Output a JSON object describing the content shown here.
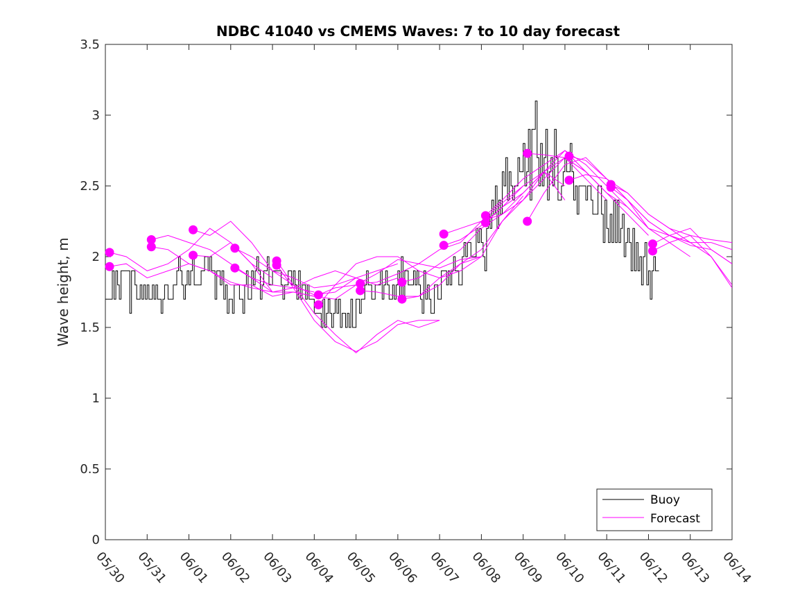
{
  "chart_data": {
    "type": "line",
    "title": "NDBC 41040 vs CMEMS Waves: 7 to 10 day forecast",
    "xlabel": "",
    "ylabel": "Wave height, m",
    "x_tick_labels": [
      "05/30",
      "05/31",
      "06/01",
      "06/02",
      "06/03",
      "06/04",
      "06/05",
      "06/06",
      "06/07",
      "06/08",
      "06/09",
      "06/10",
      "06/11",
      "06/12",
      "06/13",
      "06/14"
    ],
    "x_range_days": [
      0,
      15
    ],
    "y_ticks": [
      "0",
      "0.5",
      "1",
      "1.5",
      "2",
      "2.5",
      "3",
      "3.5"
    ],
    "ylim": [
      0,
      3.5
    ],
    "grid": false,
    "legend": {
      "position": "bottom-right",
      "entries": [
        "Buoy",
        "Forecast"
      ]
    },
    "colors": {
      "buoy": "#000000",
      "forecast": "#ff00ff",
      "axes": "#262626"
    },
    "buoy": {
      "name": "Buoy",
      "x": [
        0.0,
        0.5,
        0.7,
        1.0,
        1.2,
        1.35,
        1.5,
        1.8,
        2.0,
        2.3,
        2.5,
        2.7,
        3.0,
        3.3,
        3.5,
        3.8,
        4.0,
        4.2,
        4.5,
        4.8,
        5.0,
        5.2,
        5.3,
        5.5,
        5.7,
        6.0,
        6.2,
        6.4,
        6.7,
        6.9,
        7.1,
        7.3,
        7.6,
        7.8,
        8.0,
        8.2,
        8.5,
        8.8,
        9.0,
        9.2,
        9.4,
        9.6,
        9.8,
        10.0,
        10.2,
        10.35,
        10.5,
        10.7,
        11.0,
        11.3,
        11.6,
        12.0,
        12.3,
        12.6,
        12.8,
        13.0,
        13.2,
        13.25
      ],
      "y": [
        1.8,
        1.8,
        1.72,
        1.75,
        1.7,
        1.65,
        1.75,
        1.85,
        1.92,
        1.88,
        1.85,
        1.82,
        1.75,
        1.7,
        1.8,
        1.9,
        1.85,
        1.8,
        1.8,
        1.75,
        1.68,
        1.6,
        1.55,
        1.6,
        1.58,
        1.6,
        1.75,
        1.85,
        1.8,
        1.7,
        1.85,
        1.8,
        1.75,
        1.65,
        1.8,
        1.9,
        1.95,
        2.05,
        2.05,
        2.2,
        2.4,
        2.5,
        2.5,
        2.55,
        2.7,
        2.85,
        2.75,
        2.65,
        2.6,
        2.45,
        2.35,
        2.25,
        2.2,
        2.05,
        1.95,
        1.9,
        1.88,
        1.85
      ],
      "noise_amp": [
        0.15,
        0.15,
        0.12,
        0.12,
        0.1,
        0.08,
        0.12,
        0.15,
        0.15,
        0.15,
        0.15,
        0.15,
        0.15,
        0.15,
        0.15,
        0.15,
        0.12,
        0.12,
        0.12,
        0.1,
        0.1,
        0.1,
        0.1,
        0.1,
        0.1,
        0.1,
        0.12,
        0.15,
        0.15,
        0.15,
        0.15,
        0.15,
        0.15,
        0.15,
        0.15,
        0.15,
        0.15,
        0.15,
        0.15,
        0.2,
        0.25,
        0.25,
        0.25,
        0.3,
        0.3,
        0.35,
        0.3,
        0.3,
        0.25,
        0.25,
        0.2,
        0.2,
        0.2,
        0.2,
        0.2,
        0.2,
        0.15,
        0.1
      ]
    },
    "forecast": {
      "name": "Forecast",
      "series": [
        {
          "x": [
            0.1,
            0.5,
            1.0,
            1.5,
            2.0,
            2.5,
            3.0,
            3.5,
            4.0
          ],
          "y": [
            2.03,
            2.0,
            1.9,
            1.95,
            2.05,
            2.2,
            2.1,
            1.95,
            1.85
          ]
        },
        {
          "x": [
            0.1,
            0.5,
            1.0,
            1.5,
            2.0,
            2.5,
            3.0,
            3.5,
            4.0
          ],
          "y": [
            1.93,
            1.95,
            1.85,
            1.9,
            1.95,
            1.9,
            1.82,
            1.78,
            1.75
          ]
        },
        {
          "x": [
            1.1,
            1.5,
            2.0,
            2.5,
            3.0,
            3.5,
            4.0,
            4.5,
            5.0
          ],
          "y": [
            2.12,
            2.15,
            2.1,
            2.05,
            1.95,
            1.85,
            1.8,
            1.78,
            1.75
          ]
        },
        {
          "x": [
            1.1,
            1.5,
            2.0,
            2.5,
            3.0,
            3.5,
            4.0,
            4.5,
            5.0
          ],
          "y": [
            2.07,
            2.05,
            1.95,
            1.9,
            1.8,
            1.8,
            1.72,
            1.75,
            1.72
          ]
        },
        {
          "x": [
            2.1,
            2.5,
            3.0,
            3.5,
            4.0,
            4.5,
            5.0,
            5.5,
            6.0
          ],
          "y": [
            2.19,
            2.15,
            2.25,
            2.1,
            1.9,
            1.8,
            1.73,
            1.75,
            1.85
          ]
        },
        {
          "x": [
            2.1,
            2.5,
            3.0,
            3.5,
            4.0,
            4.5,
            5.0,
            5.5,
            6.0
          ],
          "y": [
            2.01,
            2.0,
            2.1,
            1.95,
            1.75,
            1.75,
            1.72,
            1.7,
            1.8
          ]
        },
        {
          "x": [
            3.1,
            3.5,
            4.0,
            4.5,
            5.0,
            5.5,
            6.0,
            6.5,
            7.0
          ],
          "y": [
            2.06,
            2.0,
            1.9,
            1.85,
            1.78,
            1.8,
            1.85,
            1.9,
            1.95
          ]
        },
        {
          "x": [
            3.1,
            3.5,
            4.0,
            4.5,
            5.0,
            5.5,
            6.0,
            6.5,
            7.0
          ],
          "y": [
            1.92,
            1.85,
            1.75,
            1.78,
            1.85,
            1.9,
            1.85,
            1.8,
            1.85
          ]
        },
        {
          "x": [
            4.1,
            4.5,
            5.0,
            5.5,
            6.0,
            6.5,
            7.0,
            7.5,
            8.0
          ],
          "y": [
            1.97,
            1.8,
            1.6,
            1.45,
            1.32,
            1.45,
            1.55,
            1.5,
            1.55
          ]
        },
        {
          "x": [
            4.1,
            4.5,
            5.0,
            5.5,
            6.0,
            6.5,
            7.0,
            7.5,
            8.0
          ],
          "y": [
            1.94,
            1.78,
            1.55,
            1.4,
            1.33,
            1.4,
            1.52,
            1.55,
            1.55
          ]
        },
        {
          "x": [
            5.1,
            5.5,
            6.0,
            6.5,
            7.0,
            7.5,
            8.0,
            8.5,
            9.0
          ],
          "y": [
            1.73,
            1.78,
            1.8,
            1.88,
            1.98,
            1.95,
            1.92,
            1.98,
            2.0
          ]
        },
        {
          "x": [
            5.1,
            5.5,
            6.0,
            6.5,
            7.0,
            7.5,
            8.0,
            8.5,
            9.0
          ],
          "y": [
            1.66,
            1.8,
            1.95,
            2.0,
            2.0,
            1.9,
            1.85,
            1.9,
            2.0
          ]
        },
        {
          "x": [
            6.1,
            6.5,
            7.0,
            7.5,
            8.0,
            8.5,
            9.0,
            9.5,
            10.0
          ],
          "y": [
            1.81,
            1.82,
            1.88,
            1.95,
            2.05,
            2.1,
            2.25,
            2.38,
            2.5
          ]
        },
        {
          "x": [
            6.1,
            6.5,
            7.0,
            7.5,
            8.0,
            8.5,
            9.0,
            9.5,
            10.0
          ],
          "y": [
            1.76,
            1.75,
            1.72,
            1.72,
            1.8,
            1.95,
            2.0,
            2.25,
            2.43
          ]
        },
        {
          "x": [
            7.1,
            7.5,
            8.0,
            8.5,
            9.0,
            9.5,
            10.0,
            10.5,
            11.0
          ],
          "y": [
            1.82,
            1.85,
            1.95,
            2.05,
            2.2,
            2.3,
            2.45,
            2.6,
            2.5
          ]
        },
        {
          "x": [
            7.1,
            7.5,
            8.0,
            8.5,
            9.0,
            9.5,
            10.0,
            10.5,
            11.0
          ],
          "y": [
            1.7,
            1.72,
            1.85,
            1.95,
            2.05,
            2.25,
            2.4,
            2.6,
            2.4
          ]
        },
        {
          "x": [
            8.1,
            8.5,
            9.0,
            9.5,
            10.0,
            10.5,
            11.0,
            11.5,
            12.0
          ],
          "y": [
            2.16,
            2.2,
            2.25,
            2.3,
            2.4,
            2.55,
            2.7,
            2.55,
            2.4
          ]
        },
        {
          "x": [
            8.1,
            8.5,
            9.0,
            9.5,
            10.0,
            10.5,
            11.0,
            11.5,
            12.0
          ],
          "y": [
            2.08,
            2.12,
            2.22,
            2.35,
            2.45,
            2.6,
            2.75,
            2.6,
            2.45
          ]
        },
        {
          "x": [
            9.1,
            9.5,
            10.0,
            10.5,
            11.0,
            11.5,
            12.0,
            12.5,
            13.0
          ],
          "y": [
            2.29,
            2.4,
            2.55,
            2.65,
            2.75,
            2.65,
            2.5,
            2.35,
            2.2
          ]
        },
        {
          "x": [
            9.1,
            9.5,
            10.0,
            10.5,
            11.0,
            11.5,
            12.0,
            12.5,
            13.0
          ],
          "y": [
            2.24,
            2.35,
            2.5,
            2.6,
            2.7,
            2.6,
            2.45,
            2.3,
            2.15
          ]
        },
        {
          "x": [
            10.1,
            10.5,
            11.0,
            11.5,
            12.0,
            12.5,
            13.0,
            13.5,
            14.0
          ],
          "y": [
            2.25,
            2.45,
            2.65,
            2.7,
            2.55,
            2.4,
            2.2,
            2.15,
            2.1
          ]
        },
        {
          "x": [
            10.1,
            10.5,
            11.0,
            11.5,
            12.0,
            12.5,
            13.0,
            13.5,
            14.0
          ],
          "y": [
            2.73,
            2.72,
            2.7,
            2.6,
            2.45,
            2.35,
            2.2,
            2.1,
            2.0
          ]
        },
        {
          "x": [
            11.1,
            11.5,
            12.0,
            12.5,
            13.0,
            13.5,
            14.0,
            14.5,
            15.0
          ],
          "y": [
            2.54,
            2.58,
            2.55,
            2.45,
            2.3,
            2.2,
            2.1,
            2.1,
            2.05
          ]
        },
        {
          "x": [
            11.1,
            11.5,
            12.0,
            12.5,
            13.0,
            13.5,
            14.0,
            14.5,
            15.0
          ],
          "y": [
            2.71,
            2.68,
            2.55,
            2.4,
            2.25,
            2.15,
            2.08,
            2.05,
            1.95
          ]
        },
        {
          "x": [
            12.1,
            12.5,
            13.0,
            13.5,
            14.0,
            14.5,
            15.0
          ],
          "y": [
            2.51,
            2.45,
            2.3,
            2.2,
            2.15,
            2.12,
            2.1
          ]
        },
        {
          "x": [
            12.1,
            12.5,
            13.0,
            13.5,
            14.0,
            14.5,
            15.0
          ],
          "y": [
            2.49,
            2.4,
            2.25,
            2.15,
            2.1,
            2.0,
            1.8
          ]
        },
        {
          "x": [
            13.1,
            13.5,
            14.0,
            14.5,
            15.0
          ],
          "y": [
            2.09,
            2.15,
            2.2,
            2.05,
            1.95
          ]
        },
        {
          "x": [
            13.1,
            13.5,
            14.0,
            14.5,
            15.0
          ],
          "y": [
            2.04,
            2.1,
            2.15,
            2.0,
            1.78
          ]
        }
      ]
    }
  }
}
